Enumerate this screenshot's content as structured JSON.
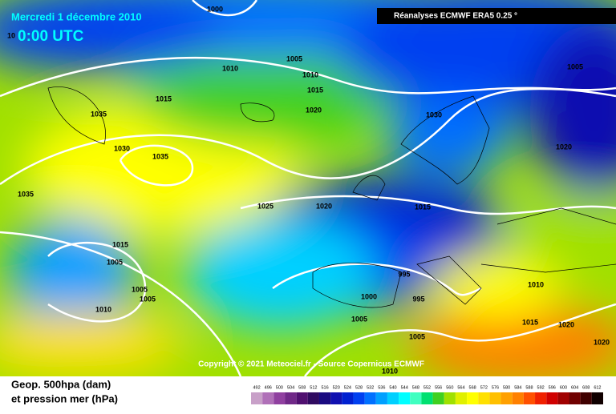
{
  "header": {
    "date": "Mercredi 1 décembre 2010",
    "time": "0:00 UTC",
    "source": "Réanalyses ECMWF ERA5 0.25 °"
  },
  "isobar_labels": [
    1000,
    10,
    1005,
    1010,
    1010,
    1015,
    1015,
    1020,
    1035,
    1030,
    1030,
    1035,
    1020,
    1035,
    1025,
    1020,
    1015,
    1015,
    1005,
    995,
    1010,
    1005,
    1005,
    995,
    1000,
    1010,
    1005,
    1015,
    1020,
    1005,
    1020,
    1010,
    1005
  ],
  "copyright": "Copyright © 2021 Meteociel.fr - Source Copernicus ECMWF",
  "legend": {
    "line1": "Geop. 500hpa (dam)",
    "line2": "et pression mer (hPa)",
    "scale": [
      492,
      496,
      500,
      504,
      508,
      512,
      516,
      520,
      524,
      528,
      532,
      536,
      540,
      544,
      548,
      552,
      556,
      560,
      564,
      568,
      572,
      576,
      580,
      584,
      588,
      592,
      596,
      600,
      604,
      608,
      612
    ],
    "colors": [
      "#c8a0c8",
      "#b070b8",
      "#9040a0",
      "#702888",
      "#501070",
      "#300a60",
      "#1a0a80",
      "#1010b0",
      "#0020d0",
      "#0040f0",
      "#0070ff",
      "#00a0ff",
      "#00d0ff",
      "#00ffff",
      "#40ffc0",
      "#00e070",
      "#40d020",
      "#a0e000",
      "#e0f000",
      "#ffff00",
      "#ffe000",
      "#ffc000",
      "#ffa000",
      "#ff8000",
      "#ff5000",
      "#f02000",
      "#d00000",
      "#a00000",
      "#700000",
      "#400000",
      "#100000"
    ]
  }
}
